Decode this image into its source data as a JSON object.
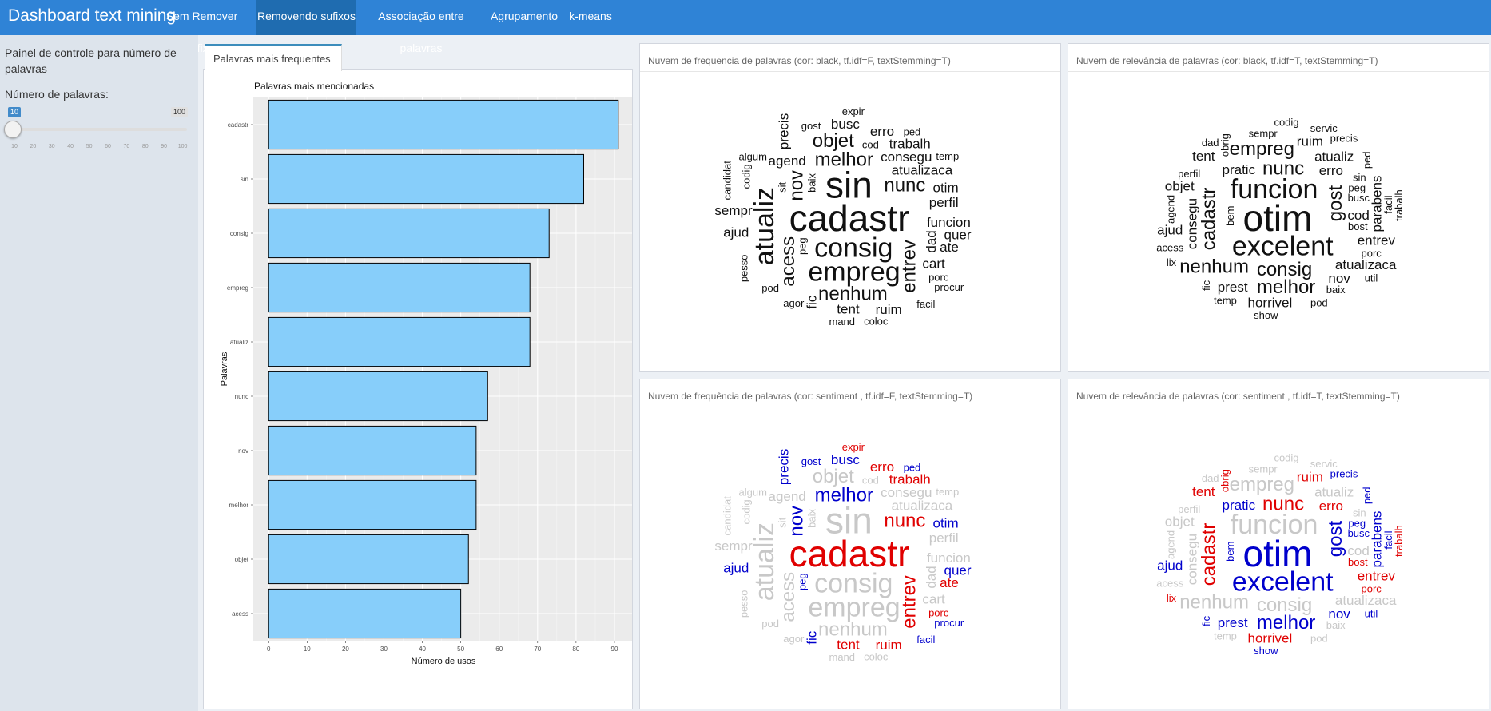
{
  "app": {
    "title": "Dashboard text mining",
    "tabs": [
      {
        "label": "Sem Remover Sufixos"
      },
      {
        "label": "Removendo sufixos",
        "active": true
      },
      {
        "label": "Associação entre palavras"
      },
      {
        "label": "Agrupamento"
      },
      {
        "label": "k-means"
      }
    ]
  },
  "sidebar": {
    "title": "Painel de controle para número de palavras",
    "slider_label": "Número de palavras:",
    "slider_value": "10",
    "slider_max": "100",
    "ticks": [
      "10",
      "20",
      "30",
      "40",
      "50",
      "60",
      "70",
      "80",
      "90",
      "100"
    ]
  },
  "main": {
    "chart_tab_label": "Palavras mais frequentes",
    "panel_titles": [
      "Nuvem de frequencia de palavras (cor: black, tf.idf=F, textStemming=T)",
      "Nuvem de relevância de palavras (cor: black, tf.idf=T, textStemming=T)",
      "Nuvem de frequência de palavras (cor: sentiment , tf.idf=F, textStemming=T)",
      "Nuvem de relevância de palavras (cor: sentiment , tf.idf=T, textStemming=T)"
    ]
  },
  "colors": {
    "bar_fill": "#87cefa",
    "positive": "#0000cc",
    "negative": "#e00000",
    "neutral": "#c8c8c8"
  },
  "chart_data": {
    "type": "bar",
    "orientation": "horizontal",
    "title": "Palavras mais mencionadas",
    "xlabel": "Número de usos",
    "ylabel": "Palavras",
    "categories": [
      "cadastr",
      "sin",
      "consig",
      "empreg",
      "atualiz",
      "nunc",
      "nov",
      "melhor",
      "objet",
      "acess"
    ],
    "values": [
      91,
      82,
      73,
      68,
      68,
      57,
      54,
      54,
      52,
      50
    ],
    "xlim": [
      -4,
      95
    ],
    "xticks": [
      "0",
      "10",
      "20",
      "30",
      "40",
      "50",
      "60",
      "70",
      "80",
      "90"
    ],
    "grid": true
  },
  "clouds": {
    "frequency": [
      {
        "w": "cadastr",
        "s": 5,
        "c": "r"
      },
      {
        "w": "sin",
        "s": 5,
        "c": "n"
      },
      {
        "w": "atualiz",
        "s": 4,
        "c": "n"
      },
      {
        "w": "consig",
        "s": 4,
        "c": "n"
      },
      {
        "w": "empreg",
        "s": 4,
        "c": "n"
      },
      {
        "w": "melhor",
        "s": 3,
        "c": "b"
      },
      {
        "w": "nunc",
        "s": 3,
        "c": "r"
      },
      {
        "w": "nov",
        "s": 3,
        "c": "b"
      },
      {
        "w": "entrev",
        "s": 3,
        "c": "r"
      },
      {
        "w": "acess",
        "s": 3,
        "c": "n"
      },
      {
        "w": "nenhum",
        "s": 3,
        "c": "n"
      },
      {
        "w": "objet",
        "s": 3,
        "c": "n"
      },
      {
        "w": "atualizaca",
        "s": 2,
        "c": "n"
      },
      {
        "w": "consegu",
        "s": 2,
        "c": "n"
      },
      {
        "w": "funcion",
        "s": 2,
        "c": "n"
      },
      {
        "w": "agend",
        "s": 2,
        "c": "n"
      },
      {
        "w": "perfil",
        "s": 2,
        "c": "n"
      },
      {
        "w": "dad",
        "s": 2,
        "c": "n"
      },
      {
        "w": "trabalh",
        "s": 2,
        "c": "r"
      },
      {
        "w": "cart",
        "s": 2,
        "c": "n"
      },
      {
        "w": "erro",
        "s": 2,
        "c": "r"
      },
      {
        "w": "tent",
        "s": 2,
        "c": "r"
      },
      {
        "w": "otim",
        "s": 2,
        "c": "b"
      },
      {
        "w": "ajud",
        "s": 2,
        "c": "b"
      },
      {
        "w": "sempr",
        "s": 2,
        "c": "n"
      },
      {
        "w": "precis",
        "s": 2,
        "c": "b"
      },
      {
        "w": "ate",
        "s": 2,
        "c": "r"
      },
      {
        "w": "fic",
        "s": 2,
        "c": "b"
      },
      {
        "w": "busc",
        "s": 2,
        "c": "b"
      },
      {
        "w": "quer",
        "s": 2,
        "c": "b"
      },
      {
        "w": "ruim",
        "s": 2,
        "c": "r"
      },
      {
        "w": "codig",
        "s": 1,
        "c": "n"
      },
      {
        "w": "candidat",
        "s": 1,
        "c": "n"
      },
      {
        "w": "gost",
        "s": 1,
        "c": "b"
      },
      {
        "w": "porc",
        "s": 1,
        "c": "r"
      },
      {
        "w": "agor",
        "s": 1,
        "c": "n"
      },
      {
        "w": "cod",
        "s": 1,
        "c": "n"
      },
      {
        "w": "baix",
        "s": 1,
        "c": "n"
      },
      {
        "w": "pod",
        "s": 1,
        "c": "n"
      },
      {
        "w": "pesso",
        "s": 1,
        "c": "n"
      },
      {
        "w": "mand",
        "s": 1,
        "c": "n"
      },
      {
        "w": "peg",
        "s": 1,
        "c": "b"
      },
      {
        "w": "sit",
        "s": 1,
        "c": "n"
      },
      {
        "w": "facil",
        "s": 1,
        "c": "b"
      },
      {
        "w": "algum",
        "s": 1,
        "c": "n"
      },
      {
        "w": "temp",
        "s": 1,
        "c": "n"
      },
      {
        "w": "expir",
        "s": 1,
        "c": "r"
      },
      {
        "w": "coloc",
        "s": 1,
        "c": "n"
      },
      {
        "w": "ped",
        "s": 1,
        "c": "b"
      },
      {
        "w": "procur",
        "s": 1,
        "c": "b"
      }
    ],
    "relevance": [
      {
        "w": "otim",
        "s": 5,
        "c": "b"
      },
      {
        "w": "funcion",
        "s": 4,
        "c": "n"
      },
      {
        "w": "excelent",
        "s": 4,
        "c": "b"
      },
      {
        "w": "cadastr",
        "s": 3,
        "c": "r"
      },
      {
        "w": "nunc",
        "s": 3,
        "c": "r"
      },
      {
        "w": "consig",
        "s": 3,
        "c": "n"
      },
      {
        "w": "gost",
        "s": 3,
        "c": "b"
      },
      {
        "w": "empreg",
        "s": 3,
        "c": "n"
      },
      {
        "w": "melhor",
        "s": 3,
        "c": "b"
      },
      {
        "w": "nenhum",
        "s": 3,
        "c": "n"
      },
      {
        "w": "pratic",
        "s": 2,
        "c": "b"
      },
      {
        "w": "cod",
        "s": 2,
        "c": "n"
      },
      {
        "w": "atualiz",
        "s": 2,
        "c": "n"
      },
      {
        "w": "atualizaca",
        "s": 2,
        "c": "n"
      },
      {
        "w": "consegu",
        "s": 2,
        "c": "n"
      },
      {
        "w": "parabens",
        "s": 2,
        "c": "b"
      },
      {
        "w": "horrivel",
        "s": 2,
        "c": "r"
      },
      {
        "w": "entrev",
        "s": 2,
        "c": "r"
      },
      {
        "w": "erro",
        "s": 2,
        "c": "r"
      },
      {
        "w": "prest",
        "s": 2,
        "c": "b"
      },
      {
        "w": "nov",
        "s": 2,
        "c": "b"
      },
      {
        "w": "objet",
        "s": 2,
        "c": "n"
      },
      {
        "w": "ruim",
        "s": 2,
        "c": "r"
      },
      {
        "w": "tent",
        "s": 2,
        "c": "r"
      },
      {
        "w": "ajud",
        "s": 2,
        "c": "b"
      },
      {
        "w": "perfil",
        "s": 1,
        "c": "n"
      },
      {
        "w": "sempr",
        "s": 1,
        "c": "n"
      },
      {
        "w": "agend",
        "s": 1,
        "c": "n"
      },
      {
        "w": "bem",
        "s": 1,
        "c": "b"
      },
      {
        "w": "busc",
        "s": 1,
        "c": "b"
      },
      {
        "w": "porc",
        "s": 1,
        "c": "r"
      },
      {
        "w": "peg",
        "s": 1,
        "c": "b"
      },
      {
        "w": "baix",
        "s": 1,
        "c": "n"
      },
      {
        "w": "acess",
        "s": 1,
        "c": "n"
      },
      {
        "w": "obrig",
        "s": 1,
        "c": "r"
      },
      {
        "w": "fic",
        "s": 1,
        "c": "b"
      },
      {
        "w": "sin",
        "s": 1,
        "c": "n"
      },
      {
        "w": "facil",
        "s": 1,
        "c": "b"
      },
      {
        "w": "codig",
        "s": 1,
        "c": "n"
      },
      {
        "w": "servic",
        "s": 1,
        "c": "n"
      },
      {
        "w": "temp",
        "s": 1,
        "c": "n"
      },
      {
        "w": "trabalh",
        "s": 1,
        "c": "r"
      },
      {
        "w": "bost",
        "s": 1,
        "c": "r"
      },
      {
        "w": "pod",
        "s": 1,
        "c": "n"
      },
      {
        "w": "ped",
        "s": 1,
        "c": "b"
      },
      {
        "w": "dad",
        "s": 1,
        "c": "n"
      },
      {
        "w": "util",
        "s": 1,
        "c": "b"
      },
      {
        "w": "lix",
        "s": 1,
        "c": "r"
      },
      {
        "w": "show",
        "s": 1,
        "c": "b"
      },
      {
        "w": "precis",
        "s": 1,
        "c": "b"
      }
    ]
  }
}
